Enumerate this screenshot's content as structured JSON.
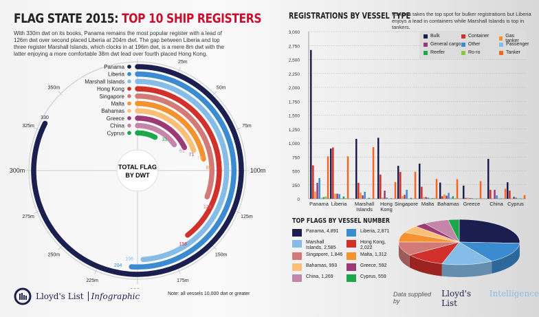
{
  "header": {
    "title_black": "FLAG STATE 2015:",
    "title_red": "TOP 10 SHIP REGISTERS",
    "intro": "With 330m dwt on its books, Panama remains the most popular register with a lead of 126m dwt over second placed Liberia at 204m dwt. The gap between Liberia and top three register Marshall Islands, which clocks in at 196m dwt, is a mere 8m dwt with the latter enjoying a more comfortable 38m dwt lead over fourth placed Hong Kong."
  },
  "chart_data": [
    {
      "type": "radial-bar",
      "center_label": "TOTAL FLAG BY DWT",
      "unit": "m dwt",
      "axis_max": 400,
      "ticks": [
        "0",
        "25m",
        "50m",
        "75m",
        "100m",
        "125m",
        "150m",
        "175m",
        "200m",
        "225m",
        "250m",
        "275m",
        "300m",
        "325m",
        "350m"
      ],
      "categories": [
        "Panama",
        "Liberia",
        "Marshall Islands",
        "Hong Kong",
        "Singapore",
        "Malta",
        "Bahamas",
        "Greece",
        "China",
        "Cyprus"
      ],
      "values": [
        330,
        204,
        196,
        158,
        123,
        89,
        78,
        71,
        61,
        31
      ],
      "colors": [
        "#1b1f4f",
        "#3b8bd0",
        "#86bde8",
        "#d1302b",
        "#d27a78",
        "#f5922f",
        "#fbbf78",
        "#9c3a76",
        "#c486a8",
        "#1ea64a"
      ]
    },
    {
      "type": "bar",
      "title": "REGISTRATIONS BY VESSEL TYPE",
      "subtitle": "Panama takes the top spot for bulker registrations but Liberia enjoys a lead in containers while Marshall Islands is top in tankers.",
      "ylim": [
        0,
        3000
      ],
      "yticks": [
        "0",
        "250",
        "500",
        "750",
        "1,000",
        "1,250",
        "1,500",
        "1,750",
        "2,000",
        "2,250",
        "2,500",
        "2,750",
        "3,000"
      ],
      "grid": true,
      "legend": "top-right",
      "categories": [
        "Panama",
        "Liberia",
        "Marshall Islands",
        "Hong Kong",
        "Singapore",
        "Malta",
        "Bahamas",
        "Greece",
        "China",
        "Cyprus"
      ],
      "series": [
        {
          "name": "Bulk",
          "color": "#1b1f4f",
          "values": [
            2670,
            900,
            1075,
            1095,
            590,
            630,
            290,
            235,
            715,
            295
          ]
        },
        {
          "name": "Container",
          "color": "#d1302b",
          "values": [
            600,
            920,
            285,
            435,
            480,
            215,
            45,
            15,
            160,
            145
          ]
        },
        {
          "name": "Gas tanker",
          "color": "#f5922f",
          "values": [
            130,
            90,
            110,
            20,
            45,
            30,
            80,
            20,
            5,
            5
          ]
        },
        {
          "name": "General cargo",
          "color": "#9c3a76",
          "values": [
            285,
            90,
            60,
            145,
            70,
            30,
            55,
            10,
            160,
            35
          ]
        },
        {
          "name": "Other",
          "color": "#3b8bd0",
          "values": [
            370,
            85,
            125,
            20,
            160,
            20,
            105,
            10,
            60,
            20
          ]
        },
        {
          "name": "Passenger",
          "color": "#86bde8",
          "values": [
            20,
            10,
            5,
            5,
            5,
            10,
            20,
            5,
            10,
            10
          ]
        },
        {
          "name": "Reefer",
          "color": "#1ea64a",
          "values": [
            30,
            40,
            15,
            10,
            15,
            10,
            45,
            0,
            5,
            5
          ]
        },
        {
          "name": "Ro-ro",
          "color": "#8cc63f",
          "values": [
            40,
            10,
            5,
            5,
            5,
            15,
            10,
            0,
            5,
            5
          ]
        },
        {
          "name": "Tanker",
          "color": "#f26522",
          "values": [
            760,
            760,
            925,
            300,
            485,
            355,
            350,
            315,
            180,
            65
          ]
        }
      ]
    },
    {
      "type": "pie",
      "title": "TOP FLAGS BY VESSEL NUMBER",
      "labels": [
        "Panama, 4,891",
        "Liberia, 2,871",
        "Marshall Islands, 2,585",
        "Hong Kong, 2,022",
        "Singapore, 1,846",
        "Malta, 1,312",
        "Bahamas, 993",
        "Greece, 592",
        "China, 1,269",
        "Cyprus, 559"
      ],
      "values": [
        4891,
        2871,
        2585,
        2022,
        1846,
        1312,
        993,
        592,
        1269,
        559
      ],
      "colors": [
        "#1b1f4f",
        "#3b8bd0",
        "#86bde8",
        "#d1302b",
        "#d27a78",
        "#f5922f",
        "#fbbf78",
        "#9c3a76",
        "#c486a8",
        "#1ea64a"
      ]
    }
  ],
  "footer": {
    "logo_brand": "Lloyd's List",
    "logo_suffix": "Infographic",
    "note": "Note: all vessels 10,000 dwt or greater",
    "supplied_by": "Data supplied by",
    "supplier_a": "Lloyd's List",
    "supplier_b": "Intelligence"
  }
}
